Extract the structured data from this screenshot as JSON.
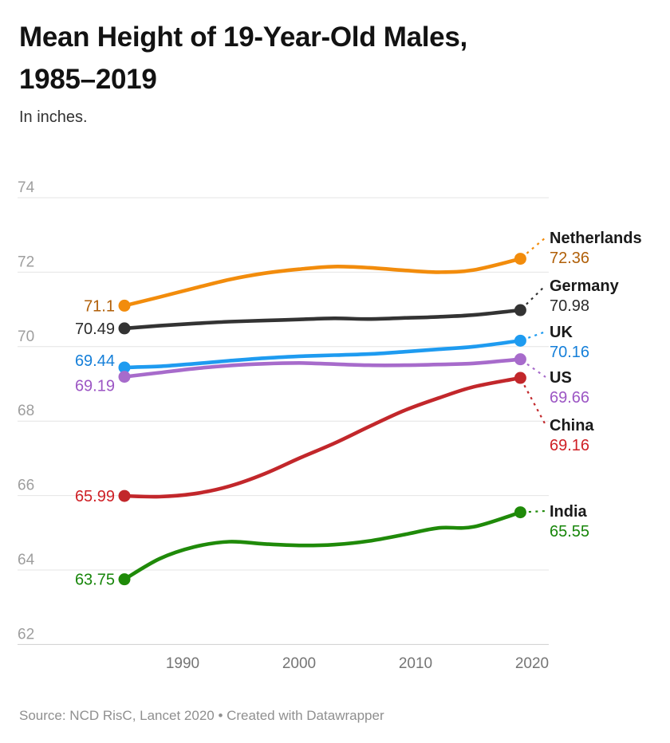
{
  "header": {
    "title": "Mean Height of 19-Year-Old Males,\n1985–2019",
    "subtitle": "In inches."
  },
  "footer": {
    "source": "Source: NCD RisC, Lancet 2020 • Created with Datawrapper"
  },
  "chart_data": {
    "type": "line",
    "title": "Mean Height of 19-Year-Old Males, 1985–2019",
    "xlabel": "",
    "ylabel": "In inches",
    "xlim": [
      1985,
      2020
    ],
    "ylim": [
      62,
      74
    ],
    "grid": true,
    "legend_position": "right-direct-labels",
    "x_ticks": [
      1990,
      2000,
      2010,
      2020
    ],
    "y_ticks": [
      74,
      72,
      70,
      68,
      66,
      64,
      62
    ],
    "x": [
      1985,
      1988,
      1991,
      1994,
      1997,
      2000,
      2003,
      2006,
      2009,
      2012,
      2015,
      2019
    ],
    "series": [
      {
        "name": "Netherlands",
        "color": "#F28C0C",
        "label_color": "#B05F08",
        "start_value": 71.1,
        "end_value": 72.36,
        "start_label": "71.1",
        "end_label": "72.36",
        "values": [
          71.1,
          71.33,
          71.57,
          71.8,
          71.97,
          72.08,
          72.15,
          72.12,
          72.05,
          72.0,
          72.06,
          72.36
        ]
      },
      {
        "name": "Germany",
        "color": "#333333",
        "label_color": "#2b2b2b",
        "start_value": 70.49,
        "end_value": 70.98,
        "start_label": "70.49",
        "end_label": "70.98",
        "values": [
          70.49,
          70.56,
          70.62,
          70.67,
          70.7,
          70.73,
          70.76,
          70.74,
          70.77,
          70.8,
          70.85,
          70.98
        ]
      },
      {
        "name": "UK",
        "color": "#1E9BF0",
        "label_color": "#157FD9",
        "start_value": 69.44,
        "end_value": 70.16,
        "start_label": "69.44",
        "end_label": "70.16",
        "values": [
          69.44,
          69.47,
          69.54,
          69.62,
          69.69,
          69.74,
          69.77,
          69.8,
          69.86,
          69.93,
          70.0,
          70.16
        ]
      },
      {
        "name": "US",
        "color": "#A76BCB",
        "label_color": "#9C56C4",
        "start_value": 69.19,
        "end_value": 69.66,
        "start_label": "69.19",
        "end_label": "69.66",
        "values": [
          69.19,
          69.3,
          69.41,
          69.49,
          69.54,
          69.56,
          69.53,
          69.5,
          69.5,
          69.52,
          69.55,
          69.66
        ]
      },
      {
        "name": "China",
        "color": "#C2272B",
        "label_color": "#CF2026",
        "start_value": 65.99,
        "end_value": 69.16,
        "start_label": "65.99",
        "end_label": "69.16",
        "values": [
          65.99,
          65.97,
          66.05,
          66.25,
          66.58,
          67.0,
          67.4,
          67.85,
          68.28,
          68.62,
          68.92,
          69.16
        ]
      },
      {
        "name": "India",
        "color": "#1F8A09",
        "label_color": "#17860A",
        "start_value": 63.75,
        "end_value": 65.55,
        "start_label": "63.75",
        "end_label": "65.55",
        "values": [
          63.75,
          64.3,
          64.62,
          64.76,
          64.7,
          64.66,
          64.68,
          64.78,
          64.95,
          65.13,
          65.16,
          65.55
        ]
      }
    ]
  }
}
